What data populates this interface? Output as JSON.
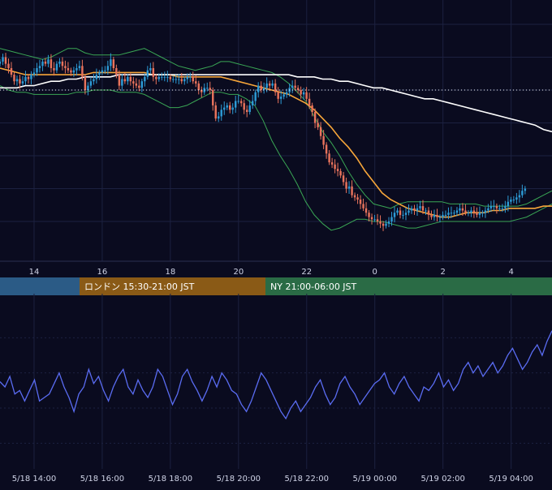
{
  "colors": {
    "background": "#0a0b1f",
    "grid": "#1c2140",
    "axis_text": "#cfd3e6",
    "candle_up": "#2d9bd6",
    "candle_down": "#e8735c",
    "ma_fast": "#f7a63a",
    "ma_slow": "#ffffff",
    "bollinger": "#3aa655",
    "rsi_line": "#5a6cf2",
    "current_price_line": "#ffffff",
    "session_tokyo": "#2b5b86",
    "session_london": "#8a5a16",
    "session_ny": "#2a6b45"
  },
  "sessions": [
    {
      "label": "",
      "color_key": "session_tokyo"
    },
    {
      "label": "ロンドン 15:30-21:00 JST",
      "color_key": "session_london"
    },
    {
      "label": "NY 21:00-06:00 JST",
      "color_key": "session_ny"
    }
  ],
  "chart_data": [
    {
      "type": "line",
      "panel": "price",
      "x_axis": {
        "label": "",
        "ticks": [
          "14",
          "16",
          "18",
          "20",
          "22",
          "0",
          "2",
          "4"
        ],
        "range_hours": [
          13.0,
          29.2
        ]
      },
      "candles": {
        "hours_start": 13.0,
        "step_hours": 0.0833,
        "close_norm": [
          0.83,
          0.85,
          0.82,
          0.8,
          0.77,
          0.74,
          0.75,
          0.73,
          0.74,
          0.76,
          0.75,
          0.77,
          0.78,
          0.8,
          0.81,
          0.83,
          0.82,
          0.84,
          0.8,
          0.79,
          0.82,
          0.83,
          0.81,
          0.8,
          0.79,
          0.78,
          0.79,
          0.8,
          0.81,
          0.76,
          0.7,
          0.72,
          0.74,
          0.75,
          0.77,
          0.78,
          0.79,
          0.79,
          0.81,
          0.84,
          0.8,
          0.77,
          0.72,
          0.75,
          0.74,
          0.76,
          0.74,
          0.73,
          0.72,
          0.71,
          0.74,
          0.76,
          0.79,
          0.8,
          0.76,
          0.75,
          0.76,
          0.76,
          0.76,
          0.76,
          0.75,
          0.75,
          0.75,
          0.75,
          0.74,
          0.75,
          0.76,
          0.76,
          0.74,
          0.73,
          0.7,
          0.69,
          0.71,
          0.71,
          0.7,
          0.63,
          0.57,
          0.58,
          0.61,
          0.62,
          0.63,
          0.61,
          0.62,
          0.65,
          0.65,
          0.64,
          0.61,
          0.6,
          0.63,
          0.65,
          0.69,
          0.72,
          0.7,
          0.71,
          0.73,
          0.72,
          0.73,
          0.69,
          0.66,
          0.67,
          0.68,
          0.69,
          0.71,
          0.72,
          0.71,
          0.7,
          0.68,
          0.69,
          0.66,
          0.63,
          0.6,
          0.55,
          0.53,
          0.49,
          0.45,
          0.41,
          0.37,
          0.36,
          0.34,
          0.33,
          0.31,
          0.28,
          0.25,
          0.26,
          0.22,
          0.21,
          0.2,
          0.18,
          0.16,
          0.14,
          0.12,
          0.11,
          0.11,
          0.1,
          0.09,
          0.08,
          0.09,
          0.1,
          0.12,
          0.14,
          0.15,
          0.13,
          0.13,
          0.14,
          0.15,
          0.16,
          0.15,
          0.16,
          0.17,
          0.15,
          0.15,
          0.13,
          0.12,
          0.13,
          0.12,
          0.12,
          0.13,
          0.13,
          0.14,
          0.14,
          0.14,
          0.15,
          0.16,
          0.15,
          0.14,
          0.14,
          0.15,
          0.14,
          0.13,
          0.14,
          0.14,
          0.15,
          0.16,
          0.17,
          0.17,
          0.16,
          0.16,
          0.16,
          0.17,
          0.19,
          0.2,
          0.2,
          0.21,
          0.22,
          0.24,
          0.25
        ]
      },
      "series": [
        {
          "name": "",
          "color_key": "ma_fast",
          "values_norm": [
            0.8,
            0.79,
            0.78,
            0.77,
            0.77,
            0.77,
            0.77,
            0.77,
            0.77,
            0.77,
            0.77,
            0.78,
            0.78,
            0.78,
            0.78,
            0.78,
            0.78,
            0.78,
            0.77,
            0.77,
            0.77,
            0.76,
            0.76,
            0.76,
            0.76,
            0.76,
            0.76,
            0.75,
            0.74,
            0.73,
            0.72,
            0.71,
            0.7,
            0.69,
            0.68,
            0.66,
            0.64,
            0.61,
            0.57,
            0.53,
            0.48,
            0.44,
            0.39,
            0.33,
            0.28,
            0.23,
            0.2,
            0.18,
            0.16,
            0.15,
            0.14,
            0.13,
            0.12,
            0.12,
            0.13,
            0.14,
            0.14,
            0.14,
            0.15,
            0.15,
            0.16,
            0.16,
            0.16,
            0.16,
            0.17,
            0.17
          ]
        },
        {
          "name": "",
          "color_key": "ma_slow",
          "values_norm": [
            0.71,
            0.71,
            0.71,
            0.72,
            0.72,
            0.73,
            0.74,
            0.74,
            0.75,
            0.75,
            0.76,
            0.76,
            0.76,
            0.76,
            0.77,
            0.77,
            0.77,
            0.77,
            0.77,
            0.77,
            0.77,
            0.77,
            0.77,
            0.77,
            0.77,
            0.77,
            0.77,
            0.77,
            0.77,
            0.77,
            0.77,
            0.77,
            0.77,
            0.77,
            0.77,
            0.76,
            0.76,
            0.76,
            0.75,
            0.75,
            0.74,
            0.74,
            0.73,
            0.72,
            0.71,
            0.71,
            0.7,
            0.69,
            0.68,
            0.67,
            0.66,
            0.66,
            0.65,
            0.64,
            0.63,
            0.62,
            0.61,
            0.6,
            0.59,
            0.58,
            0.57,
            0.56,
            0.55,
            0.54,
            0.52,
            0.51
          ]
        },
        {
          "name": "",
          "color_key": "bollinger",
          "values_norm": [
            0.89,
            0.88,
            0.87,
            0.86,
            0.85,
            0.84,
            0.85,
            0.87,
            0.89,
            0.89,
            0.87,
            0.86,
            0.86,
            0.86,
            0.86,
            0.87,
            0.88,
            0.89,
            0.87,
            0.85,
            0.83,
            0.81,
            0.8,
            0.79,
            0.8,
            0.81,
            0.83,
            0.83,
            0.82,
            0.81,
            0.8,
            0.79,
            0.78,
            0.76,
            0.73,
            0.69,
            0.65,
            0.58,
            0.51,
            0.46,
            0.4,
            0.33,
            0.27,
            0.22,
            0.18,
            0.17,
            0.16,
            0.18,
            0.19,
            0.19,
            0.19,
            0.19,
            0.19,
            0.18,
            0.18,
            0.18,
            0.18,
            0.17,
            0.17,
            0.17,
            0.17,
            0.17,
            0.18,
            0.2,
            0.22,
            0.24
          ]
        },
        {
          "name": "",
          "color_key": "bollinger",
          "values_norm": [
            0.72,
            0.7,
            0.69,
            0.69,
            0.68,
            0.68,
            0.68,
            0.68,
            0.68,
            0.69,
            0.69,
            0.7,
            0.7,
            0.7,
            0.69,
            0.69,
            0.69,
            0.68,
            0.66,
            0.64,
            0.62,
            0.62,
            0.63,
            0.65,
            0.67,
            0.69,
            0.69,
            0.68,
            0.68,
            0.66,
            0.63,
            0.56,
            0.47,
            0.4,
            0.34,
            0.27,
            0.19,
            0.13,
            0.09,
            0.06,
            0.07,
            0.09,
            0.11,
            0.11,
            0.1,
            0.1,
            0.09,
            0.08,
            0.07,
            0.07,
            0.08,
            0.09,
            0.1,
            0.1,
            0.1,
            0.1,
            0.1,
            0.1,
            0.1,
            0.1,
            0.1,
            0.11,
            0.12,
            0.14,
            0.16,
            0.18
          ]
        }
      ],
      "current_price_norm": 0.7,
      "grid": true
    },
    {
      "type": "line",
      "panel": "oscillator",
      "x_axis": {
        "label": "",
        "ticks": [
          "5/18 14:00",
          "5/18 16:00",
          "5/18 18:00",
          "5/18 20:00",
          "5/18 22:00",
          "5/19 00:00",
          "5/19 02:00",
          "5/19 04:00"
        ],
        "range_hours": [
          13.0,
          29.2
        ]
      },
      "series": [
        {
          "name": "",
          "color_key": "rsi_line",
          "values": [
            55,
            52,
            58,
            48,
            50,
            44,
            50,
            56,
            44,
            46,
            48,
            54,
            60,
            52,
            46,
            38,
            48,
            52,
            62,
            54,
            58,
            50,
            44,
            52,
            58,
            62,
            52,
            48,
            56,
            50,
            46,
            52,
            62,
            58,
            50,
            42,
            48,
            58,
            62,
            55,
            50,
            44,
            50,
            58,
            52,
            60,
            56,
            50,
            48,
            42,
            38,
            44,
            52,
            60,
            56,
            50,
            44,
            38,
            34,
            40,
            44,
            38,
            42,
            46,
            52,
            56,
            48,
            42,
            46,
            54,
            58,
            52,
            48,
            42,
            46,
            50,
            54,
            56,
            60,
            52,
            48,
            54,
            58,
            52,
            48,
            44,
            52,
            50,
            54,
            60,
            52,
            56,
            50,
            54,
            62,
            66,
            60,
            64,
            58,
            62,
            66,
            60,
            64,
            70,
            74,
            68,
            62,
            66,
            72,
            76,
            70,
            78,
            84
          ]
        }
      ],
      "grid": true
    }
  ]
}
